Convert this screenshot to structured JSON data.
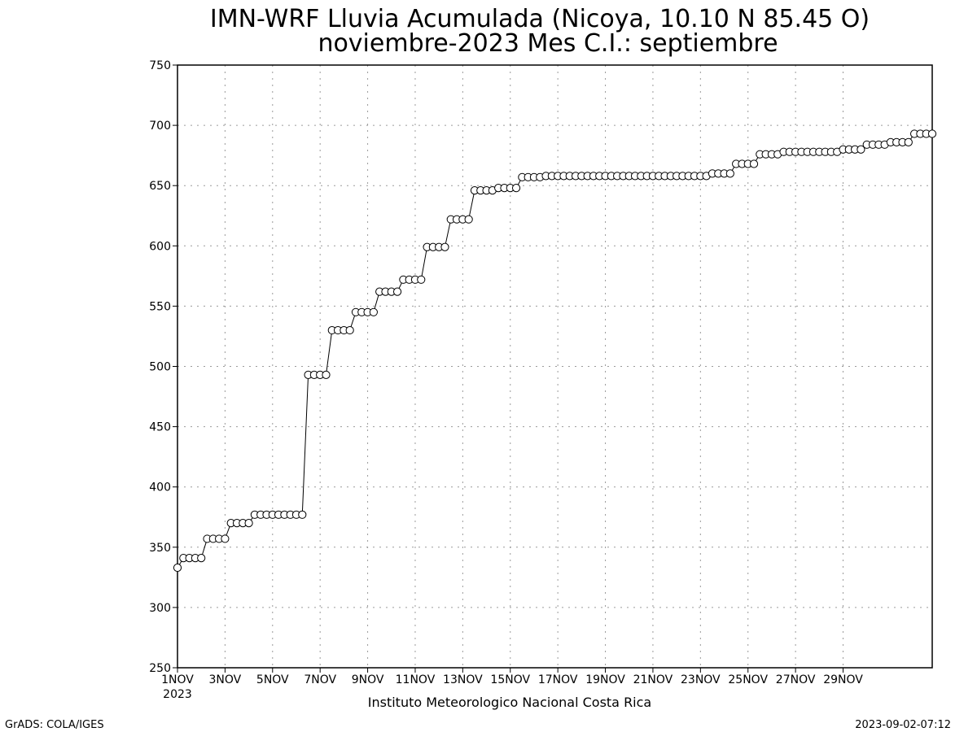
{
  "chart_data": {
    "type": "line",
    "title": "IMN-WRF  Lluvia Acumulada (Nicoya, 10.10  N 85.45  O)",
    "subtitle": "noviembre-2023 Mes C.I.: septiembre",
    "xlabel": "",
    "ylabel": "",
    "ylim": [
      250,
      750
    ],
    "grid": true,
    "y_ticks": [
      "250",
      "300",
      "350",
      "400",
      "450",
      "500",
      "550",
      "600",
      "650",
      "700",
      "750"
    ],
    "x_ticks": [
      "1NOV",
      "3NOV",
      "5NOV",
      "7NOV",
      "9NOV",
      "11NOV",
      "13NOV",
      "15NOV",
      "17NOV",
      "19NOV",
      "21NOV",
      "23NOV",
      "25NOV",
      "27NOV",
      "29NOV"
    ],
    "x_tick_year": "2023",
    "x_range": [
      "1NOV 00Z",
      "30NOV 06Z"
    ],
    "x_step_hours": 6,
    "series": [
      {
        "values": [
          333,
          341,
          341,
          341,
          341,
          357,
          357,
          357,
          357,
          370,
          370,
          370,
          370,
          377,
          377,
          377,
          377,
          377,
          377,
          377,
          377,
          377,
          493,
          493,
          493,
          493,
          530,
          530,
          530,
          530,
          545,
          545,
          545,
          545,
          562,
          562,
          562,
          562,
          572,
          572,
          572,
          572,
          599,
          599,
          599,
          599,
          622,
          622,
          622,
          622,
          646,
          646,
          646,
          646,
          648,
          648,
          648,
          648,
          657,
          657,
          657,
          657,
          658,
          658,
          658,
          658,
          658,
          658,
          658,
          658,
          658,
          658,
          658,
          658,
          658,
          658,
          658,
          658,
          658,
          658,
          658,
          658,
          658,
          658,
          658,
          658,
          658,
          658,
          658,
          658,
          660,
          660,
          660,
          660,
          668,
          668,
          668,
          668,
          676,
          676,
          676,
          676,
          678,
          678,
          678,
          678,
          678,
          678,
          678,
          678,
          678,
          678,
          680,
          680,
          680,
          680,
          684,
          684,
          684,
          684,
          686,
          686,
          686,
          686,
          693,
          693,
          693,
          693
        ]
      }
    ]
  },
  "footer": {
    "institution": "Instituto Meteorologico Nacional Costa Rica",
    "left_credit": "GrADS: COLA/IGES",
    "timestamp": "2023-09-02-07:12"
  }
}
